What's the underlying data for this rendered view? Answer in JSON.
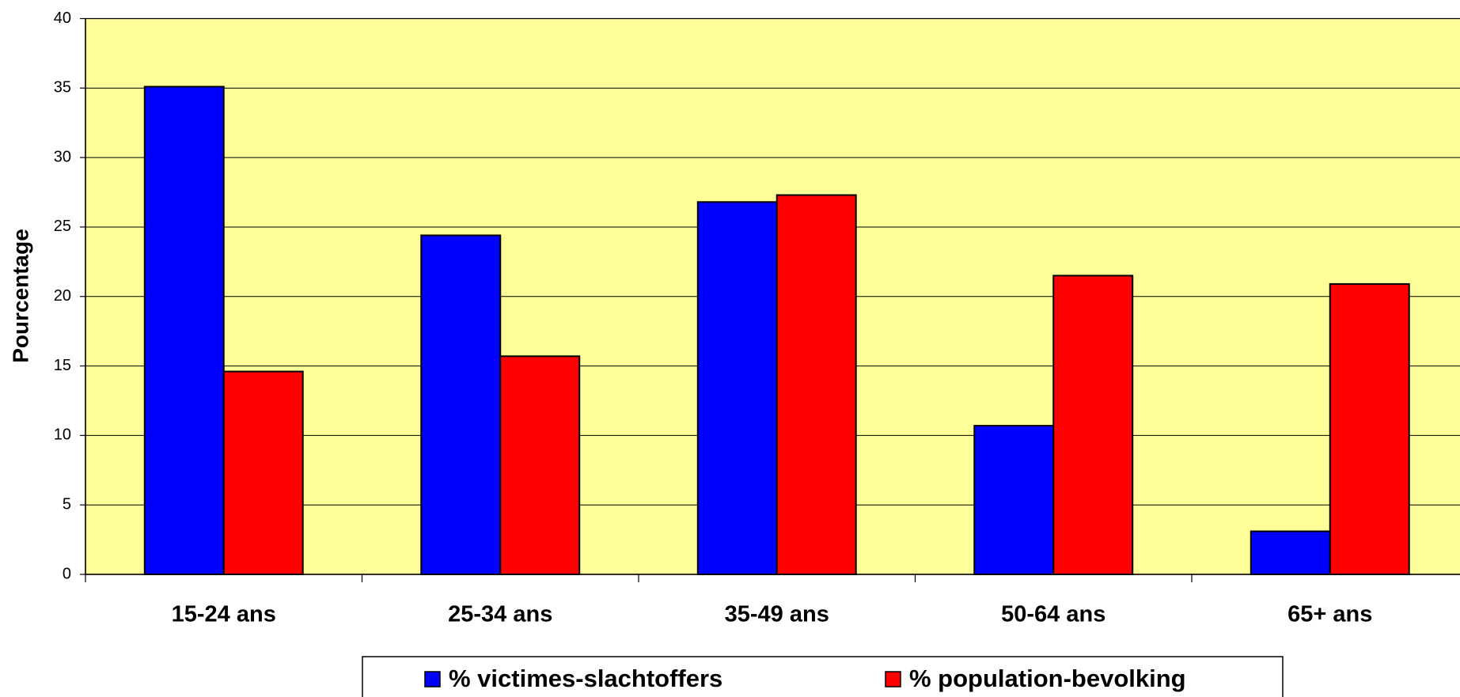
{
  "chart_data": {
    "type": "bar",
    "y_label": "Pourcentage",
    "categories": [
      "15-24 ans",
      "25-34 ans",
      "35-49 ans",
      "50-64 ans",
      "65+ ans"
    ],
    "series": [
      {
        "name": "% victimes-slachtoffers",
        "color": "#0000ff",
        "values": [
          35.1,
          24.4,
          26.8,
          10.7,
          3.1
        ]
      },
      {
        "name": "% population-bevolking",
        "color": "#ff0000",
        "values": [
          14.6,
          15.7,
          27.3,
          21.5,
          20.9
        ]
      }
    ],
    "ylim": [
      0,
      40
    ],
    "yticks": [
      0,
      5,
      10,
      15,
      20,
      25,
      30,
      35,
      40
    ],
    "grid": true,
    "legend": "bottom",
    "plot_background": "#ffff99"
  }
}
